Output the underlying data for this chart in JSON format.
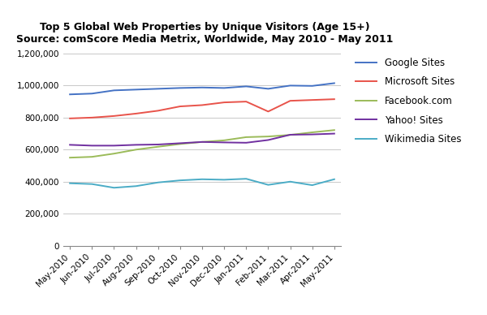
{
  "title": "Top 5 Global Web Properties by Unique Visitors (Age 15+)\nSource: comScore Media Metrix, Worldwide, May 2010 - May 2011",
  "x_labels": [
    "May-2010",
    "Jun-2010",
    "Jul-2010",
    "Aug-2010",
    "Sep-2010",
    "Oct-2010",
    "Nov-2010",
    "Dec-2010",
    "Jan-2011",
    "Feb-2011",
    "Mar-2011",
    "Apr-2011",
    "May-2011"
  ],
  "series": [
    {
      "name": "Google Sites",
      "color": "#4472C4",
      "values": [
        945000,
        950000,
        970000,
        975000,
        980000,
        985000,
        988000,
        985000,
        995000,
        980000,
        1000000,
        998000,
        1015000
      ]
    },
    {
      "name": "Microsoft Sites",
      "color": "#E8534A",
      "values": [
        795000,
        800000,
        810000,
        825000,
        843000,
        870000,
        878000,
        895000,
        900000,
        838000,
        905000,
        910000,
        915000
      ]
    },
    {
      "name": "Facebook.com",
      "color": "#9BBB59",
      "values": [
        550000,
        555000,
        575000,
        600000,
        618000,
        635000,
        648000,
        658000,
        678000,
        682000,
        692000,
        708000,
        722000
      ]
    },
    {
      "name": "Yahoo! Sites",
      "color": "#7030A0",
      "values": [
        630000,
        625000,
        625000,
        630000,
        632000,
        640000,
        648000,
        645000,
        643000,
        660000,
        693000,
        695000,
        700000
      ]
    },
    {
      "name": "Wikimedia Sites",
      "color": "#4BACC6",
      "values": [
        390000,
        385000,
        362000,
        372000,
        395000,
        408000,
        415000,
        412000,
        418000,
        380000,
        400000,
        378000,
        415000
      ]
    }
  ],
  "ylim": [
    0,
    1200000
  ],
  "yticks": [
    0,
    200000,
    400000,
    600000,
    800000,
    1000000,
    1200000
  ],
  "title_fontsize": 9,
  "tick_fontsize": 7.5,
  "legend_fontsize": 8.5,
  "background_color": "#FFFFFF",
  "grid_color": "#C8C8C8",
  "line_width": 1.4
}
